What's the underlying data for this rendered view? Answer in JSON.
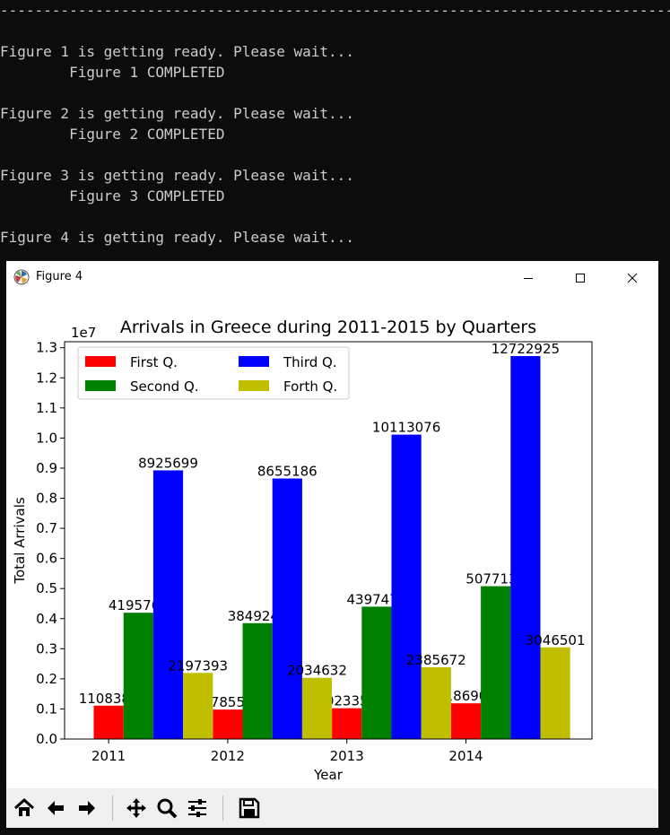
{
  "terminal": {
    "lines": [
      "------------------------------------------------------------------------------",
      "",
      "Figure 1 is getting ready. Please wait...",
      "        Figure 1 COMPLETED",
      "",
      "Figure 2 is getting ready. Please wait...",
      "        Figure 2 COMPLETED",
      "",
      "Figure 3 is getting ready. Please wait...",
      "        Figure 3 COMPLETED",
      "",
      "Figure 4 is getting ready. Please wait..."
    ]
  },
  "window": {
    "title": "Figure 4",
    "minimize_label": "–",
    "close_label": "✕"
  },
  "toolbar": {
    "buttons": [
      "home-icon",
      "back-icon",
      "forward-icon",
      "pan-icon",
      "zoom-icon",
      "configure-subplots-icon",
      "save-icon"
    ]
  },
  "chart_data": {
    "type": "bar",
    "title": "Arrivals in Greece during 2011-2015 by Quarters",
    "xlabel": "Year",
    "ylabel": "Total Arrivals",
    "offset_label": "1e7",
    "scale": 10000000,
    "ylim": [
      0,
      1.32
    ],
    "yticks": [
      "0.0",
      "0.1",
      "0.2",
      "0.3",
      "0.4",
      "0.5",
      "0.6",
      "0.7",
      "0.8",
      "0.9",
      "1.0",
      "1.1",
      "1.2",
      "1.3"
    ],
    "categories": [
      "2011",
      "2012",
      "2013",
      "2014"
    ],
    "series": [
      {
        "name": "First Q.",
        "color": "#ff0000",
        "values": [
          1108387,
          978559,
          1023354,
          1186900
        ]
      },
      {
        "name": "Second Q.",
        "color": "#008000",
        "values": [
          4195768,
          3849245,
          4397478,
          5077136
        ]
      },
      {
        "name": "Third Q.",
        "color": "#0000ff",
        "values": [
          8925699,
          8655186,
          10113076,
          12722925
        ]
      },
      {
        "name": "Forth Q.",
        "color": "#bfbf00",
        "values": [
          2197393,
          2034632,
          2385672,
          3046501
        ]
      }
    ],
    "legend": "upper-left, 2 columns",
    "grid": false
  }
}
